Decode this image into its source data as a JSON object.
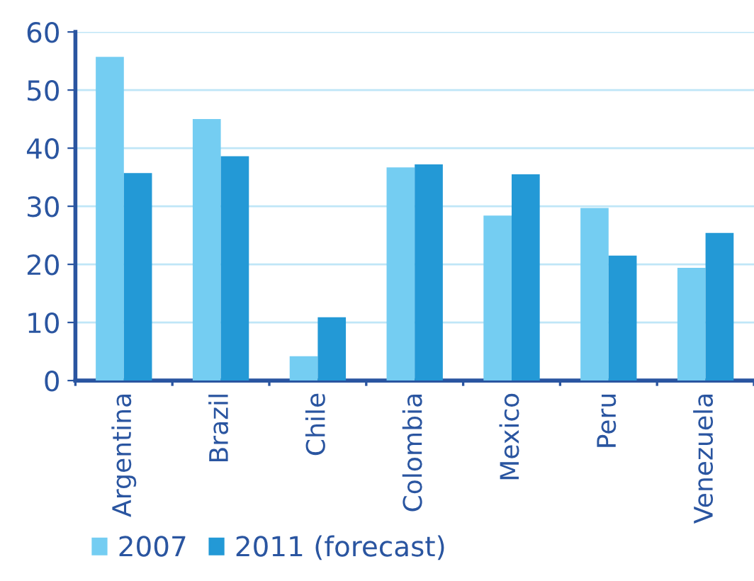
{
  "chart_data": {
    "type": "bar",
    "categories": [
      "Argentina",
      "Brazil",
      "Chile",
      "Colombia",
      "Mexico",
      "Peru",
      "Venezuela"
    ],
    "series": [
      {
        "name": "2007",
        "color": "#74cdf2",
        "values": [
          55.7,
          45.0,
          4.2,
          36.7,
          28.4,
          29.7,
          19.4
        ]
      },
      {
        "name": "2011 (forecast)",
        "color": "#2399d6",
        "values": [
          35.7,
          38.6,
          10.9,
          37.2,
          35.5,
          21.5,
          25.4
        ]
      }
    ],
    "ylim": [
      0,
      60
    ],
    "yticks": [
      0,
      10,
      20,
      30,
      40,
      50,
      60
    ],
    "grid": "y",
    "legend": "bottom left"
  }
}
